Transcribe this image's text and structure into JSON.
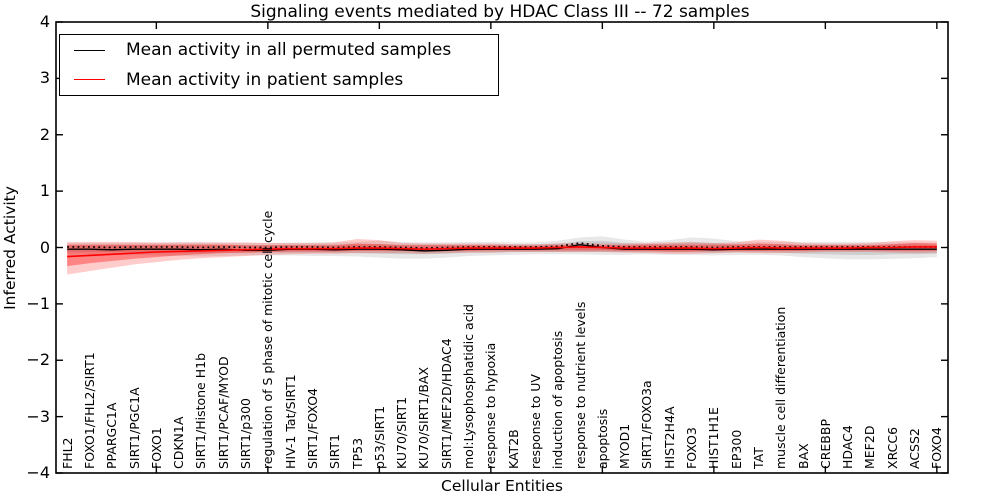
{
  "figure": {
    "title": "Signaling events mediated by HDAC Class III -- 72 samples",
    "xlabel": "Cellular Entities",
    "ylabel": "Inferred Activity",
    "background": "#ffffff",
    "spine_color": "#000000"
  },
  "legend": {
    "entries": [
      {
        "label": "Mean activity in all permuted samples",
        "color": "#000000"
      },
      {
        "label": "Mean activity in patient samples",
        "color": "#ff0000"
      }
    ]
  },
  "chart_data": {
    "type": "line",
    "title": "Signaling events mediated by HDAC Class III -- 72 samples",
    "xlabel": "Cellular Entities",
    "ylabel": "Inferred Activity",
    "ylim": [
      -4,
      4
    ],
    "grid": false,
    "legend_position": "upper left",
    "yticks": {
      "values": [
        -4,
        -3,
        -2,
        -1,
        0,
        1,
        2,
        3,
        4
      ],
      "labels": [
        "−4",
        "−3",
        "−2",
        "−1",
        "0",
        "1",
        "2",
        "3",
        "4"
      ]
    },
    "xtick_entity_numbers": [
      5,
      10,
      15,
      20,
      25,
      30,
      35,
      40
    ],
    "categories": [
      "FHL2",
      "FOXO1/FHL2/SIRT1",
      "PPARGC1A",
      "SIRT1/PGC1A",
      "FOXO1",
      "CDKN1A",
      "SIRT1/Histone H1b",
      "SIRT1/PCAF/MYOD",
      "SIRT1/p300",
      "regulation of S phase of mitotic cell cycle",
      "HIV-1 Tat/SIRT1",
      "SIRT1/FOXO4",
      "SIRT1",
      "TP53",
      "p53/SIRT1",
      "KU70/SIRT1",
      "KU70/SIRT1/BAX",
      "SIRT1/MEF2D/HDAC4",
      "mol:Lysophosphatidic acid",
      "response to hypoxia",
      "KAT2B",
      "response to UV",
      "induction of apoptosis",
      "response to nutrient levels",
      "apoptosis",
      "MYOD1",
      "SIRT1/FOXO3a",
      "HIST2H4A",
      "FOXO3",
      "HIST1H1E",
      "EP300",
      "TAT",
      "muscle cell differentiation",
      "BAX",
      "CREBBP",
      "HDAC4",
      "MEF2D",
      "XRCC6",
      "ACSS2",
      "FOXO4"
    ],
    "series": [
      {
        "id": "permuted-mean",
        "name": "Mean activity in all permuted samples",
        "color": "#000000",
        "style": "solid",
        "width": 1.4,
        "values": [
          -0.03,
          -0.03,
          -0.04,
          -0.03,
          -0.03,
          -0.03,
          -0.04,
          -0.03,
          -0.05,
          -0.05,
          -0.03,
          -0.03,
          -0.04,
          -0.03,
          -0.03,
          -0.04,
          -0.06,
          -0.05,
          -0.03,
          -0.03,
          -0.03,
          -0.03,
          -0.02,
          0.05,
          0.0,
          -0.03,
          -0.03,
          -0.03,
          -0.03,
          -0.04,
          -0.03,
          -0.03,
          -0.03,
          -0.03,
          -0.03,
          -0.03,
          -0.03,
          -0.03,
          -0.03,
          -0.03
        ]
      },
      {
        "id": "permuted-dotted-reference",
        "name": "",
        "color": "#000000",
        "style": "dotted",
        "width": 1.7,
        "values": [
          0.01,
          0.01,
          0.0,
          0.01,
          0.01,
          0.01,
          0.0,
          0.01,
          0.0,
          0.0,
          0.01,
          0.01,
          0.0,
          0.01,
          0.01,
          0.0,
          -0.01,
          0.0,
          0.01,
          0.01,
          0.01,
          0.01,
          0.02,
          0.08,
          0.03,
          0.01,
          0.01,
          0.01,
          0.01,
          0.0,
          0.01,
          0.01,
          0.01,
          0.01,
          0.01,
          0.01,
          0.01,
          0.01,
          0.01,
          0.01
        ]
      },
      {
        "id": "patient-mean",
        "name": "Mean activity in patient samples",
        "color": "#ff0000",
        "style": "solid",
        "width": 1.6,
        "values": [
          -0.16,
          -0.14,
          -0.12,
          -0.1,
          -0.08,
          -0.07,
          -0.06,
          -0.05,
          -0.04,
          -0.03,
          -0.02,
          -0.02,
          -0.02,
          -0.01,
          -0.01,
          -0.02,
          -0.03,
          -0.02,
          -0.01,
          -0.01,
          -0.01,
          -0.01,
          0.0,
          0.01,
          0.0,
          -0.01,
          -0.01,
          -0.01,
          -0.01,
          -0.02,
          -0.01,
          0.0,
          -0.01,
          -0.01,
          -0.01,
          -0.01,
          0.0,
          0.0,
          0.01,
          0.01
        ]
      }
    ],
    "bands": [
      {
        "id": "permuted-range-outer",
        "color": "rgba(128,128,128,0.18)",
        "hi": [
          0.08,
          0.08,
          0.08,
          0.08,
          0.08,
          0.09,
          0.09,
          0.08,
          0.08,
          0.08,
          0.09,
          0.09,
          0.09,
          0.1,
          0.12,
          0.1,
          0.09,
          0.09,
          0.1,
          0.1,
          0.09,
          0.09,
          0.12,
          0.18,
          0.2,
          0.14,
          0.1,
          0.13,
          0.18,
          0.16,
          0.11,
          0.1,
          0.1,
          0.1,
          0.1,
          0.1,
          0.1,
          0.09,
          0.09,
          0.08
        ],
        "lo": [
          -0.12,
          -0.12,
          -0.13,
          -0.13,
          -0.14,
          -0.15,
          -0.16,
          -0.15,
          -0.14,
          -0.14,
          -0.14,
          -0.15,
          -0.15,
          -0.16,
          -0.18,
          -0.2,
          -0.2,
          -0.18,
          -0.15,
          -0.14,
          -0.13,
          -0.12,
          -0.12,
          -0.12,
          -0.13,
          -0.13,
          -0.12,
          -0.13,
          -0.13,
          -0.14,
          -0.13,
          -0.13,
          -0.14,
          -0.17,
          -0.19,
          -0.21,
          -0.21,
          -0.2,
          -0.19,
          -0.17
        ]
      },
      {
        "id": "permuted-range-inner",
        "color": "rgba(128,128,128,0.25)",
        "hi": [
          0.04,
          0.04,
          0.04,
          0.04,
          0.04,
          0.05,
          0.05,
          0.04,
          0.04,
          0.04,
          0.05,
          0.05,
          0.05,
          0.05,
          0.06,
          0.05,
          0.05,
          0.05,
          0.05,
          0.05,
          0.05,
          0.05,
          0.07,
          0.11,
          0.12,
          0.08,
          0.06,
          0.07,
          0.1,
          0.08,
          0.06,
          0.05,
          0.05,
          0.05,
          0.05,
          0.05,
          0.05,
          0.05,
          0.05,
          0.04
        ],
        "lo": [
          -0.08,
          -0.08,
          -0.08,
          -0.08,
          -0.09,
          -0.09,
          -0.1,
          -0.09,
          -0.09,
          -0.09,
          -0.09,
          -0.09,
          -0.09,
          -0.1,
          -0.11,
          -0.12,
          -0.12,
          -0.11,
          -0.09,
          -0.09,
          -0.08,
          -0.08,
          -0.08,
          -0.08,
          -0.08,
          -0.08,
          -0.08,
          -0.08,
          -0.08,
          -0.09,
          -0.08,
          -0.08,
          -0.09,
          -0.11,
          -0.12,
          -0.13,
          -0.13,
          -0.12,
          -0.12,
          -0.11
        ]
      },
      {
        "id": "patient-range-outer",
        "color": "rgba(255,0,0,0.20)",
        "hi": [
          0.1,
          0.1,
          0.1,
          0.1,
          0.09,
          0.09,
          0.09,
          0.09,
          0.09,
          0.08,
          0.08,
          0.08,
          0.09,
          0.15,
          0.13,
          0.08,
          0.07,
          0.07,
          0.07,
          0.07,
          0.06,
          0.06,
          0.07,
          0.08,
          0.07,
          0.07,
          0.08,
          0.09,
          0.09,
          0.08,
          0.09,
          0.14,
          0.12,
          0.08,
          0.07,
          0.07,
          0.08,
          0.11,
          0.13,
          0.12
        ],
        "lo": [
          -0.48,
          -0.42,
          -0.36,
          -0.3,
          -0.26,
          -0.22,
          -0.19,
          -0.17,
          -0.15,
          -0.13,
          -0.12,
          -0.11,
          -0.11,
          -0.1,
          -0.1,
          -0.1,
          -0.11,
          -0.1,
          -0.09,
          -0.09,
          -0.08,
          -0.08,
          -0.08,
          -0.08,
          -0.08,
          -0.09,
          -0.1,
          -0.11,
          -0.11,
          -0.1,
          -0.09,
          -0.1,
          -0.1,
          -0.09,
          -0.08,
          -0.08,
          -0.08,
          -0.09,
          -0.1,
          -0.09
        ]
      },
      {
        "id": "patient-range-inner",
        "color": "rgba(255,0,0,0.35)",
        "hi": [
          0.05,
          0.05,
          0.05,
          0.05,
          0.05,
          0.05,
          0.05,
          0.05,
          0.04,
          0.04,
          0.04,
          0.04,
          0.04,
          0.07,
          0.06,
          0.04,
          0.04,
          0.04,
          0.04,
          0.04,
          0.03,
          0.03,
          0.04,
          0.04,
          0.04,
          0.04,
          0.05,
          0.05,
          0.05,
          0.05,
          0.05,
          0.07,
          0.06,
          0.04,
          0.04,
          0.04,
          0.04,
          0.06,
          0.08,
          0.07
        ],
        "lo": [
          -0.33,
          -0.28,
          -0.24,
          -0.2,
          -0.17,
          -0.14,
          -0.12,
          -0.1,
          -0.09,
          -0.08,
          -0.07,
          -0.07,
          -0.07,
          -0.06,
          -0.06,
          -0.06,
          -0.07,
          -0.06,
          -0.06,
          -0.05,
          -0.05,
          -0.05,
          -0.05,
          -0.05,
          -0.05,
          -0.06,
          -0.06,
          -0.07,
          -0.07,
          -0.06,
          -0.06,
          -0.06,
          -0.06,
          -0.06,
          -0.05,
          -0.05,
          -0.05,
          -0.06,
          -0.06,
          -0.06
        ]
      }
    ]
  }
}
